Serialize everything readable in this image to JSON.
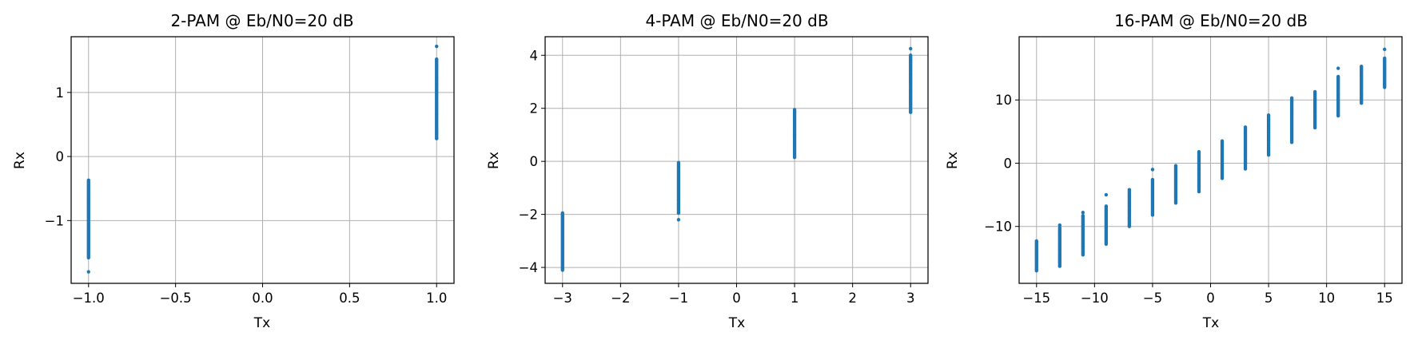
{
  "style": {
    "marker_color": "#1f77b4",
    "grid_color": "#b0b0b0",
    "grid": true
  },
  "chart_data": [
    {
      "type": "scatter",
      "title": "2-PAM @ Eb/N0=20 dB",
      "xlabel": "Tx",
      "ylabel": "Rx",
      "xlim": [
        -1.1,
        1.1
      ],
      "ylim": [
        -1.98,
        1.87
      ],
      "xticks": [
        -1.0,
        -0.5,
        0.0,
        0.5,
        1.0
      ],
      "xtick_labels": [
        "−1.0",
        "−0.5",
        "0.0",
        "0.5",
        "1.0"
      ],
      "yticks": [
        -1,
        0,
        1
      ],
      "ytick_labels": [
        "−1",
        "0",
        "1"
      ],
      "grid": true,
      "clusters": [
        {
          "x": -1.0,
          "y_min": -1.58,
          "y_max": -0.37,
          "outliers": [
            -1.8
          ]
        },
        {
          "x": 1.0,
          "y_min": 0.28,
          "y_max": 1.52,
          "outliers": [
            1.72
          ]
        }
      ]
    },
    {
      "type": "scatter",
      "title": "4-PAM @ Eb/N0=20 dB",
      "xlabel": "Tx",
      "ylabel": "Rx",
      "xlim": [
        -3.3,
        3.3
      ],
      "ylim": [
        -4.6,
        4.7
      ],
      "xticks": [
        -3,
        -2,
        -1,
        0,
        1,
        2,
        3
      ],
      "xtick_labels": [
        "−3",
        "−2",
        "−1",
        "0",
        "1",
        "2",
        "3"
      ],
      "yticks": [
        -4,
        -2,
        0,
        2,
        4
      ],
      "ytick_labels": [
        "−4",
        "−2",
        "0",
        "2",
        "4"
      ],
      "grid": true,
      "clusters": [
        {
          "x": -3,
          "y_min": -4.1,
          "y_max": -1.95,
          "outliers": []
        },
        {
          "x": -1,
          "y_min": -1.95,
          "y_max": -0.05,
          "outliers": [
            -2.2
          ]
        },
        {
          "x": 1,
          "y_min": 0.15,
          "y_max": 1.95,
          "outliers": []
        },
        {
          "x": 3,
          "y_min": 1.85,
          "y_max": 4.0,
          "outliers": [
            4.25
          ]
        }
      ]
    },
    {
      "type": "scatter",
      "title": "16-PAM @ Eb/N0=20 dB",
      "xlabel": "Tx",
      "ylabel": "Rx",
      "xlim": [
        -16.5,
        16.5
      ],
      "ylim": [
        -19.0,
        20.0
      ],
      "xticks": [
        -15,
        -10,
        -5,
        0,
        5,
        10,
        15
      ],
      "xtick_labels": [
        "−15",
        "−10",
        "−5",
        "0",
        "5",
        "10",
        "15"
      ],
      "yticks": [
        -10,
        0,
        10
      ],
      "ytick_labels": [
        "−10",
        "0",
        "10"
      ],
      "grid": true,
      "clusters": [
        {
          "x": -15,
          "y_min": -17.0,
          "y_max": -12.3,
          "outliers": []
        },
        {
          "x": -13,
          "y_min": -16.3,
          "y_max": -10.2,
          "outliers": [
            -9.8
          ]
        },
        {
          "x": -11,
          "y_min": -14.5,
          "y_max": -8.3,
          "outliers": [
            -7.8
          ]
        },
        {
          "x": -9,
          "y_min": -12.8,
          "y_max": -6.8,
          "outliers": [
            -5.0
          ]
        },
        {
          "x": -7,
          "y_min": -10.0,
          "y_max": -4.2,
          "outliers": []
        },
        {
          "x": -5,
          "y_min": -8.2,
          "y_max": -2.6,
          "outliers": [
            -1.0
          ]
        },
        {
          "x": -3,
          "y_min": -6.3,
          "y_max": -0.4,
          "outliers": []
        },
        {
          "x": -1,
          "y_min": -4.5,
          "y_max": 1.8,
          "outliers": []
        },
        {
          "x": 1,
          "y_min": -2.4,
          "y_max": 3.5,
          "outliers": []
        },
        {
          "x": 3,
          "y_min": -0.9,
          "y_max": 5.7,
          "outliers": []
        },
        {
          "x": 5,
          "y_min": 1.3,
          "y_max": 7.6,
          "outliers": []
        },
        {
          "x": 7,
          "y_min": 3.3,
          "y_max": 10.3,
          "outliers": []
        },
        {
          "x": 9,
          "y_min": 5.6,
          "y_max": 11.3,
          "outliers": []
        },
        {
          "x": 11,
          "y_min": 7.5,
          "y_max": 13.7,
          "outliers": [
            15.0
          ]
        },
        {
          "x": 13,
          "y_min": 9.5,
          "y_max": 15.3,
          "outliers": []
        },
        {
          "x": 15,
          "y_min": 12.0,
          "y_max": 16.6,
          "outliers": [
            18.0
          ]
        }
      ]
    }
  ]
}
